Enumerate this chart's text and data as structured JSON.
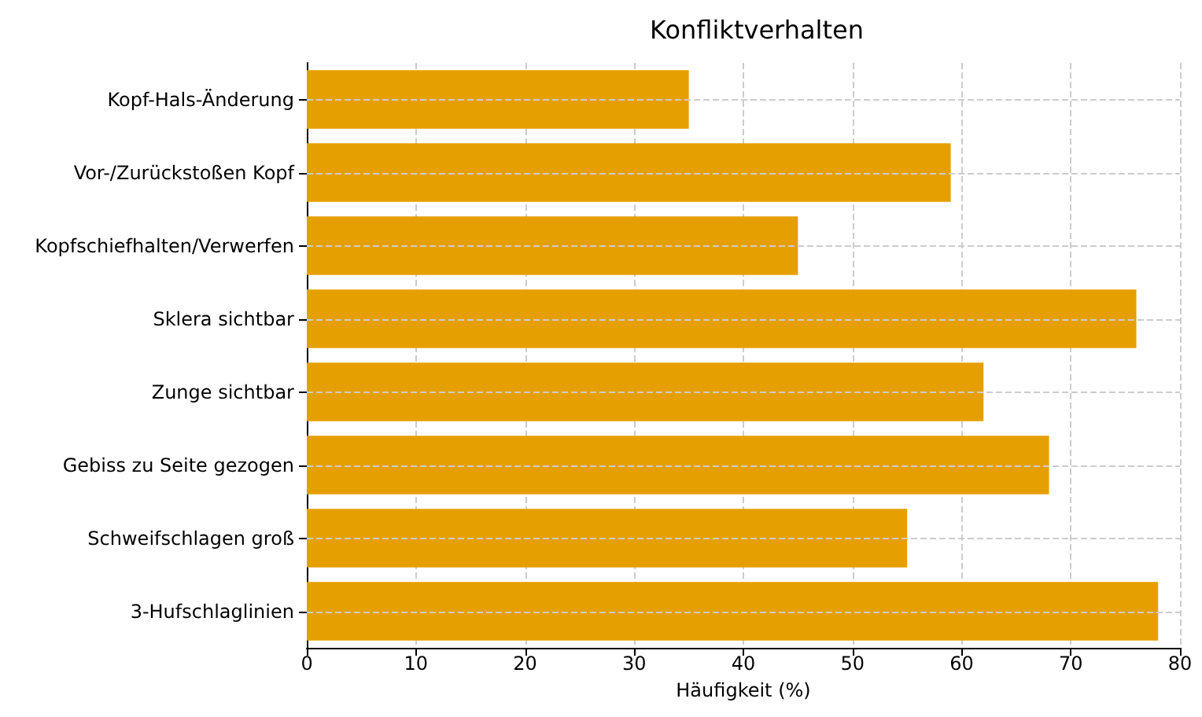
{
  "chart_data": {
    "type": "bar",
    "orientation": "horizontal",
    "title": "Konfliktverhalten",
    "xlabel": "Häufigkeit (%)",
    "categories": [
      "Kopf-Hals-Änderung",
      "Vor-/Zurückstoßen Kopf",
      "Kopfschiefhalten/Verwerfen",
      "Sklera sichtbar",
      "Zunge sichtbar",
      "Gebiss zu Seite gezogen",
      "Schweifschlagen groß",
      "3-Hufschlaglinien"
    ],
    "values": [
      35,
      59,
      45,
      76,
      62,
      68,
      55,
      78
    ],
    "color": "#e69f00",
    "xlim": [
      0,
      80
    ],
    "xticks": [
      0,
      10,
      20,
      30,
      40,
      50,
      60,
      70,
      80
    ],
    "grid": true
  }
}
